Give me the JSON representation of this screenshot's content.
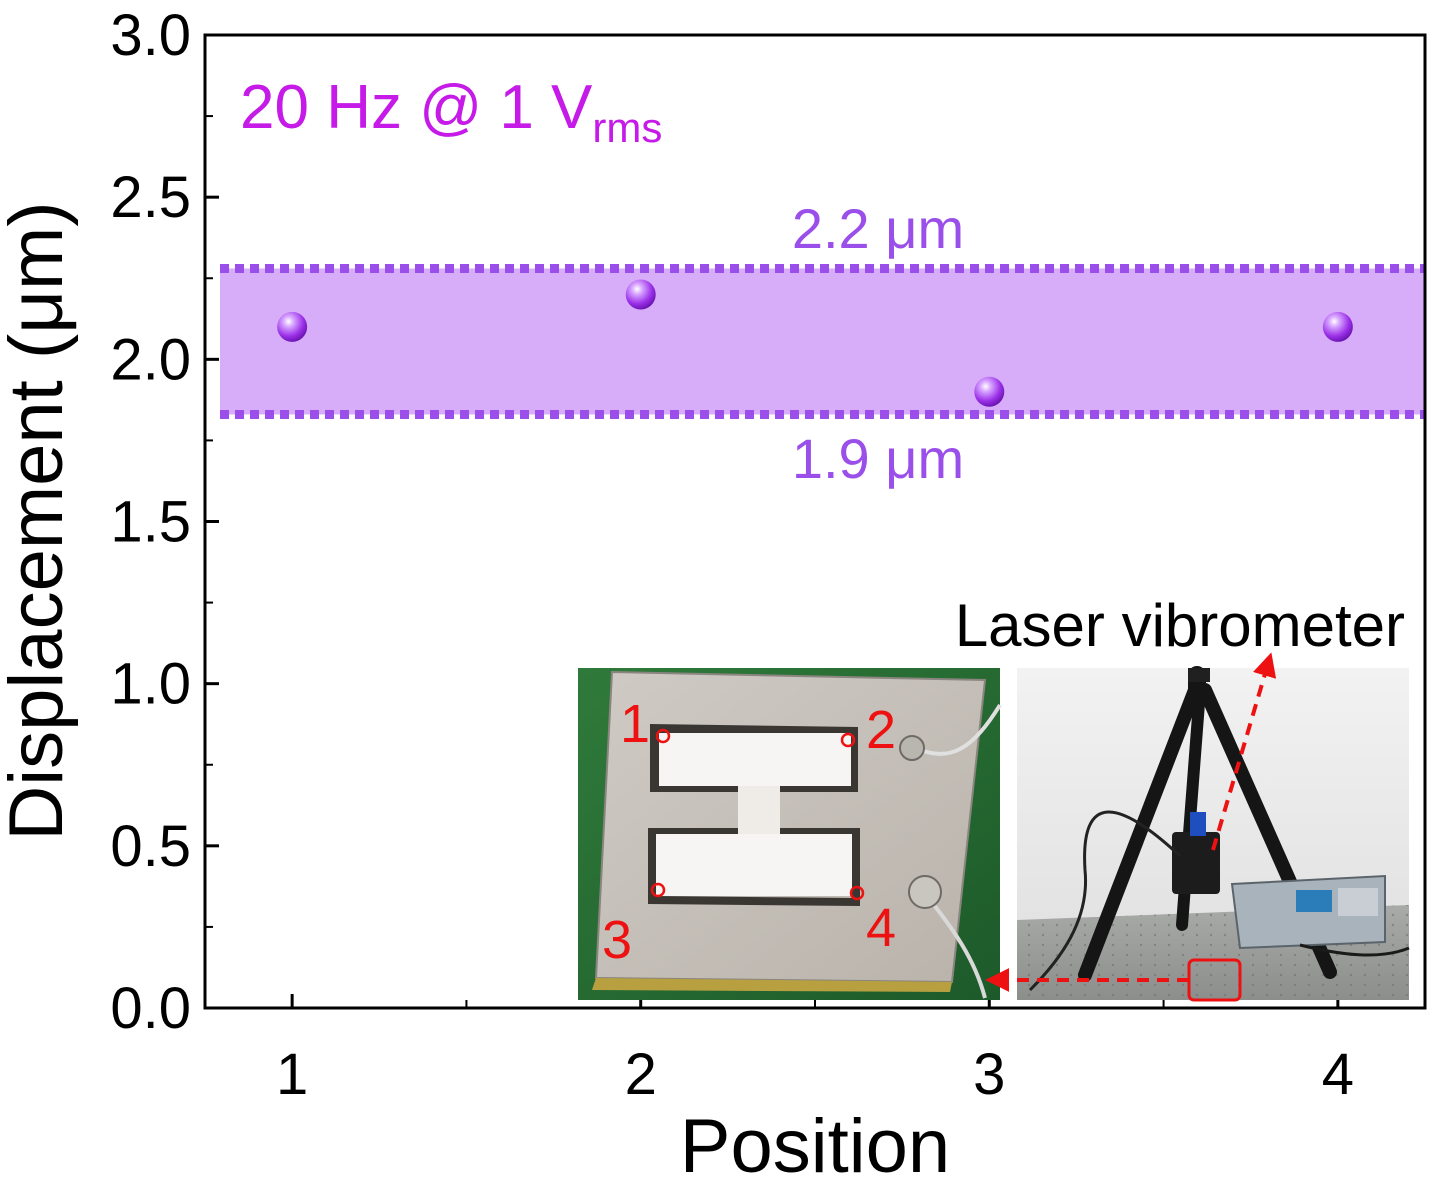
{
  "chart_data": {
    "type": "scatter",
    "xlabel": "Position",
    "ylabel": "Displacement (μm)",
    "xlim": [
      0.75,
      4.25
    ],
    "ylim": [
      0.0,
      3.0
    ],
    "x_ticks": [
      "1",
      "2",
      "3",
      "4"
    ],
    "y_ticks": [
      "0.0",
      "0.5",
      "1.0",
      "1.5",
      "2.0",
      "2.5",
      "3.0"
    ],
    "series": [
      {
        "x": [
          1,
          2,
          3,
          4
        ],
        "y": [
          2.1,
          2.2,
          1.9,
          2.1
        ],
        "color": "#9b30e8"
      }
    ],
    "band": {
      "upper": 2.28,
      "lower": 1.83,
      "fill": "#d7adfa",
      "line": "#9b4fea"
    },
    "annotations": {
      "condition_main": "20 Hz @ 1 V",
      "condition_sub": "rms",
      "upper_label": "2.2 μm",
      "lower_label": "1.9 μm"
    },
    "condition_color": "#c51ae8",
    "band_label_color": "#9b4fea"
  },
  "inset": {
    "title": "Laser vibrometer",
    "points": [
      "1",
      "2",
      "3",
      "4"
    ],
    "marker_color": "#ee1111"
  }
}
